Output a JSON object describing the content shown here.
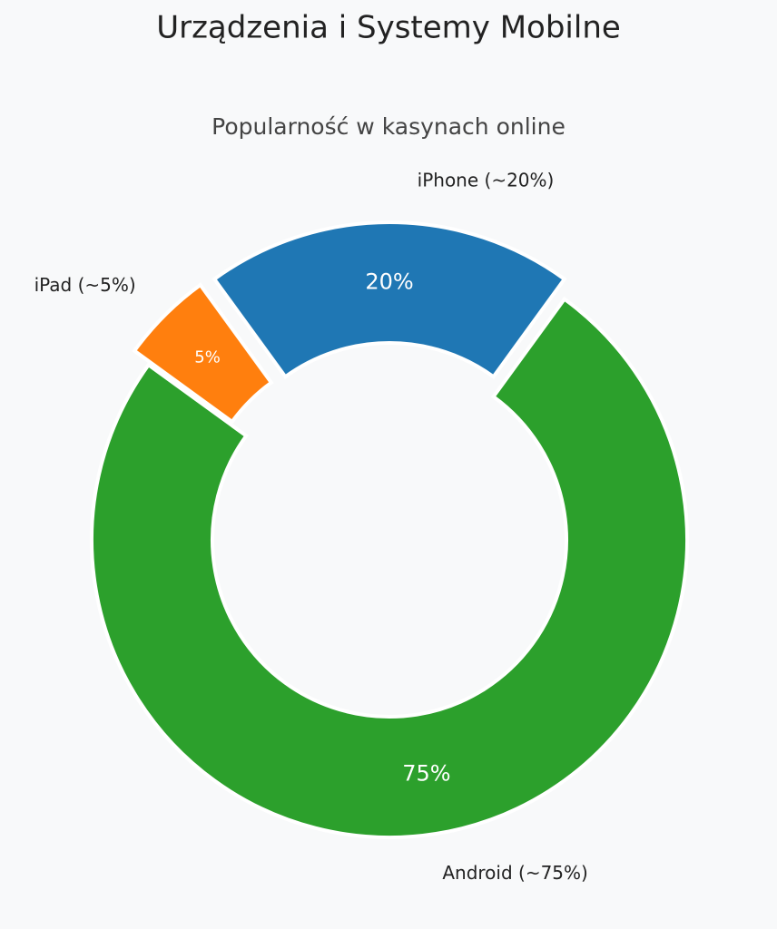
{
  "chart_data": {
    "type": "donut",
    "title": "Urządzenia i Systemy Mobilne",
    "subtitle": "Popularność w kasynach online",
    "categories": [
      "iPhone (~20%)",
      "Android (~75%)",
      "iPad (~5%)"
    ],
    "values": [
      20,
      75,
      5
    ],
    "value_labels": [
      "20%",
      "75%",
      "5%"
    ],
    "colors": [
      "#1f77b4",
      "#2ca02c",
      "#ff7f0e"
    ],
    "exploded": [
      true,
      false,
      true
    ]
  }
}
